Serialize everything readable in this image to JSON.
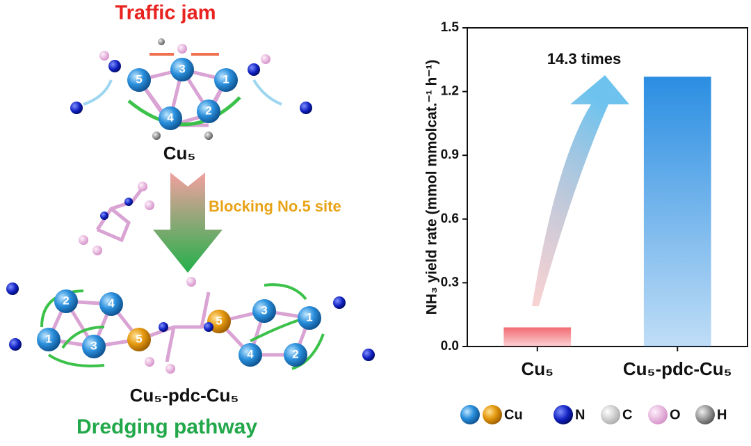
{
  "chart_data": {
    "type": "bar",
    "ylabel": "NH₃ yield rate (mmol mmolcat.⁻¹ h⁻¹)",
    "categories": [
      "Cu₅",
      "Cu₅-pdc-Cu₅"
    ],
    "values": [
      0.09,
      1.27
    ],
    "colors": [
      "#f26b72",
      "#2b8ee2"
    ],
    "annotation": "14.3 times",
    "ylim": [
      0,
      1.5
    ],
    "yticks": [
      {
        "value": 0,
        "label": "0.0"
      },
      0.3,
      0.6,
      0.9,
      1.2,
      1.5
    ]
  },
  "diagram": {
    "top_title": "Traffic jam",
    "top_label": "Cu₅",
    "top_sites": [
      "5",
      "3",
      "1",
      "4",
      "2"
    ],
    "step_label": "Blocking No.5 site",
    "bottom_label": "Cu₅-pdc-Cu₅",
    "bottom_sites": [
      "2",
      "4",
      "1",
      "3",
      "5",
      "5",
      "3",
      "1",
      "4",
      "2"
    ],
    "bottom_title": "Dredging pathway",
    "legend": [
      "Cu",
      "N",
      "C",
      "O",
      "H"
    ]
  }
}
